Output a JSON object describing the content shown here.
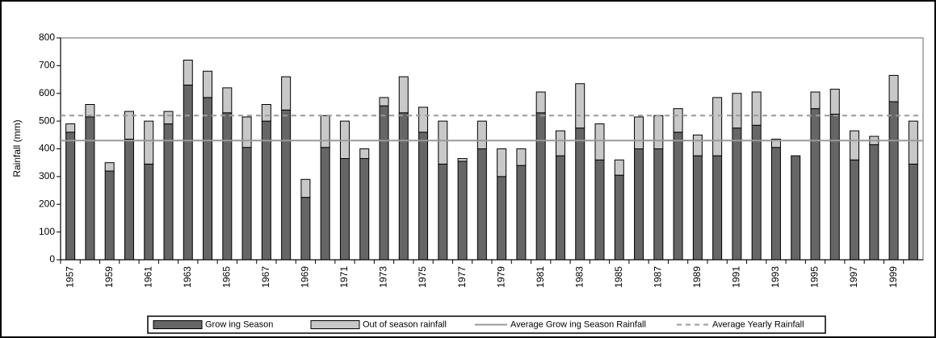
{
  "chart_data": {
    "type": "stacked_bar",
    "y_label": "Rainfall (mm)",
    "categories": [
      "1957",
      null,
      "1959",
      null,
      "1961",
      null,
      "1963",
      null,
      "1965",
      null,
      "1967",
      null,
      "1969",
      null,
      "1971",
      null,
      "1973",
      null,
      "1975",
      null,
      "1977",
      null,
      "1979",
      null,
      "1981",
      null,
      "1983",
      null,
      "1985",
      null,
      "1987",
      null,
      "1989",
      null,
      "1991",
      null,
      "1993",
      null,
      "1995",
      null,
      "1997",
      null,
      "1999",
      null
    ],
    "series": [
      {
        "name": "Grow ing Season",
        "color": "#666666",
        "values": [
          460,
          515,
          320,
          435,
          345,
          490,
          630,
          585,
          530,
          405,
          500,
          540,
          225,
          405,
          365,
          365,
          555,
          530,
          460,
          345,
          355,
          400,
          300,
          340,
          530,
          375,
          475,
          360,
          305,
          400,
          400,
          460,
          375,
          375,
          475,
          485,
          405,
          375,
          545,
          525,
          360,
          415,
          570,
          345
        ]
      },
      {
        "name": "Out of season rainfall",
        "color": "#c8c8c8",
        "values": [
          30,
          45,
          30,
          100,
          155,
          45,
          90,
          95,
          90,
          110,
          60,
          120,
          65,
          115,
          135,
          35,
          30,
          130,
          90,
          155,
          10,
          100,
          100,
          60,
          75,
          90,
          160,
          130,
          55,
          115,
          120,
          85,
          75,
          210,
          125,
          120,
          30,
          0,
          60,
          90,
          105,
          30,
          95,
          155
        ]
      }
    ],
    "reference_lines": [
      {
        "name": "Average Grow ing Season Rainfall",
        "value": 430,
        "color": "#999999",
        "dashed": false
      },
      {
        "name": "Average Yearly Rainfall",
        "value": 520,
        "color": "#999999",
        "dashed": true
      }
    ],
    "ylim": [
      0,
      800
    ],
    "yticks": [
      0,
      100,
      200,
      300,
      400,
      500,
      600,
      700,
      800
    ]
  }
}
